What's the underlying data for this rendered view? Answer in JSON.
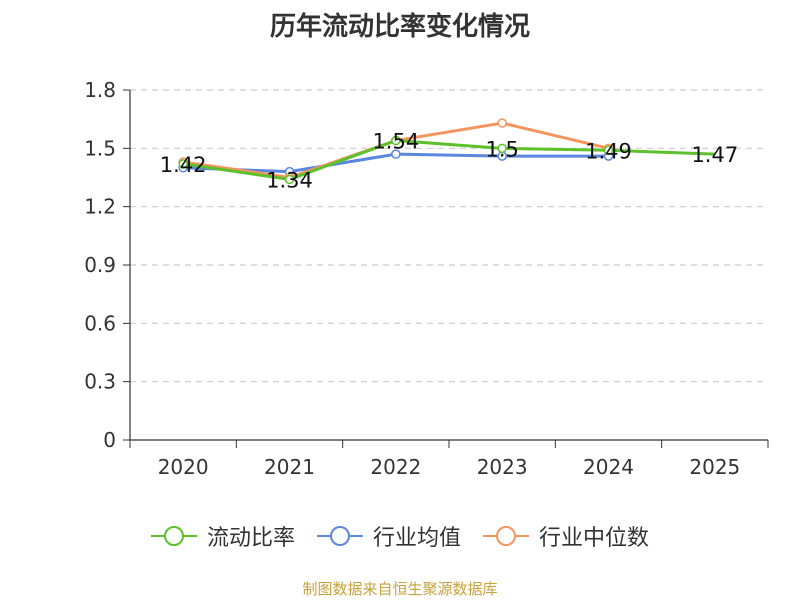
{
  "title": "历年流动比率变化情况",
  "source": "制图数据来自恒生聚源数据库",
  "colors": {
    "series_0": "#5cc12d",
    "series_1": "#5b86e0",
    "series_2": "#f5955d",
    "source_text": "#c8a23c",
    "axis": "#333333",
    "grid": "#cccccc"
  },
  "chart_data": {
    "type": "line",
    "title": "历年流动比率变化情况",
    "categories": [
      "2020",
      "2021",
      "2022",
      "2023",
      "2024",
      "2025"
    ],
    "y_ticks": [
      "0",
      "0.3",
      "0.6",
      "0.9",
      "1.2",
      "1.5",
      "1.8"
    ],
    "ylim": [
      0,
      1.8
    ],
    "grid": true,
    "grid_style": "dashed",
    "legend_position": "bottom",
    "series": [
      {
        "name": "流动比率",
        "values": [
          1.42,
          1.34,
          1.54,
          1.5,
          1.49,
          1.47
        ],
        "labels": [
          "1.42",
          "1.34",
          "1.54",
          "1.5",
          "1.49",
          "1.47"
        ]
      },
      {
        "name": "行业均值",
        "values": [
          1.4,
          1.38,
          1.47,
          1.46,
          1.46,
          null
        ]
      },
      {
        "name": "行业中位数",
        "values": [
          1.43,
          1.35,
          1.54,
          1.63,
          1.5,
          null
        ]
      }
    ]
  }
}
